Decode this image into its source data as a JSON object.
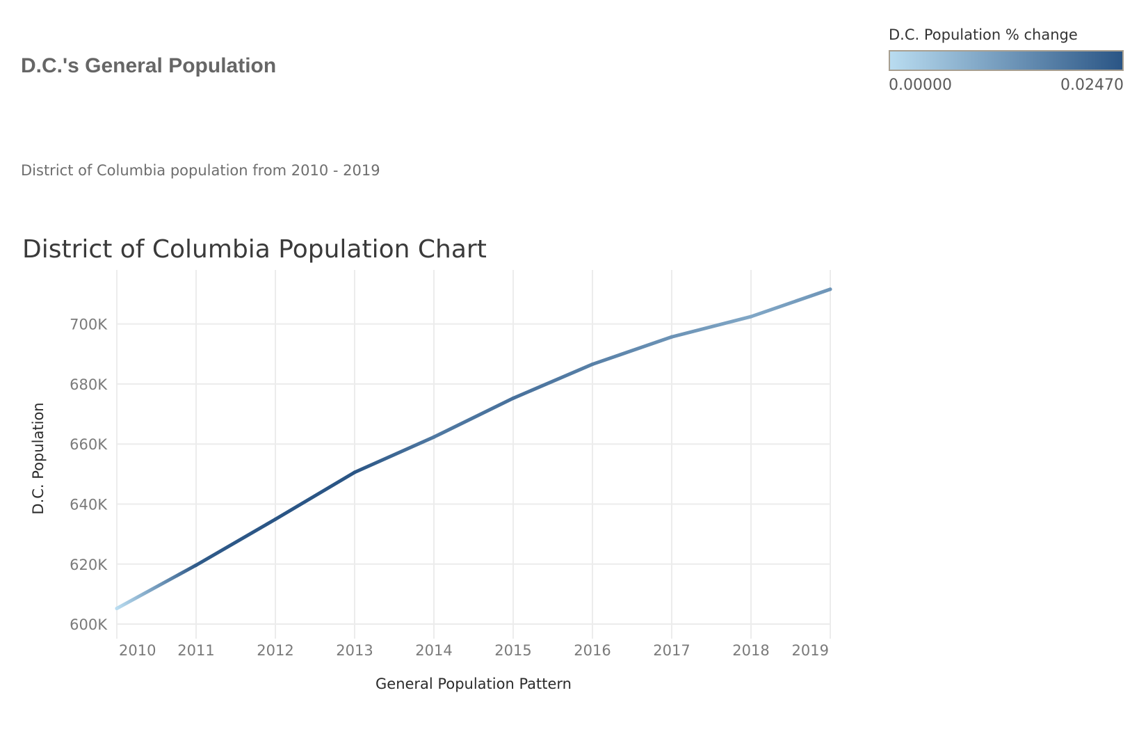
{
  "dashboard": {
    "title": "D.C.'s General Population",
    "subtitle": "District of Columbia  population from 2010 - 2019"
  },
  "legend": {
    "title": "D.C. Population % change",
    "min_label": "0.00000",
    "max_label": "0.02470",
    "color_low": "#b9dcf0",
    "color_high": "#2a5585"
  },
  "chart_data": {
    "type": "line",
    "title": "District of Columbia Population Chart",
    "xlabel": "General Population Pattern",
    "ylabel": "D.C. Population",
    "x": [
      2010,
      2011,
      2012,
      2013,
      2014,
      2015,
      2016,
      2017,
      2018,
      2019
    ],
    "x_tick_labels": [
      "2010",
      "2011",
      "2012",
      "2013",
      "2014",
      "2015",
      "2016",
      "2017",
      "2018",
      "2019"
    ],
    "series": [
      {
        "values": [
          605226,
          619633,
          634924,
          650581,
          662328,
          675254,
          686575,
          695691,
          702455,
          711571
        ],
        "pct_change": [
          0.0,
          0.0238,
          0.0247,
          0.0247,
          0.0181,
          0.0195,
          0.0168,
          0.0133,
          0.0097,
          0.013
        ]
      }
    ],
    "y_ticks": [
      600000,
      620000,
      640000,
      660000,
      680000,
      700000
    ],
    "y_tick_labels": [
      "600K",
      "620K",
      "640K",
      "660K",
      "680K",
      "700K"
    ],
    "ylim": [
      597000,
      718000
    ],
    "xlim": [
      2010,
      2019
    ],
    "grid": true,
    "legend_placement": "top-right",
    "colors": {
      "grid": "#ececec",
      "color_low": "#b9dcf0",
      "color_high": "#2a5585"
    }
  }
}
